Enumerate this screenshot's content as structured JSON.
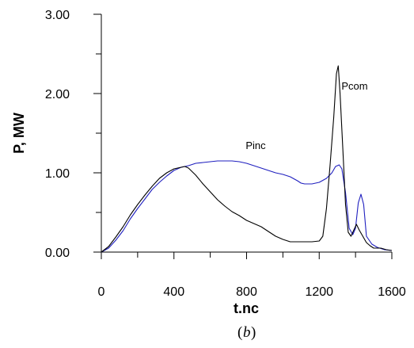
{
  "caption": {
    "open": "(",
    "letter": "b",
    "close": ")"
  },
  "chart_data": {
    "type": "line",
    "title": "",
    "xlabel": "t.nc",
    "ylabel": "P, MW",
    "xlim": [
      0,
      1600
    ],
    "ylim": [
      0,
      3
    ],
    "x_ticks": [
      {
        "value": 0,
        "label": "0"
      },
      {
        "value": 400,
        "label": "400"
      },
      {
        "value": 800,
        "label": "800"
      },
      {
        "value": 1200,
        "label": "1200"
      },
      {
        "value": 1600,
        "label": "1600"
      }
    ],
    "x_minor_step": 200,
    "y_ticks": [
      {
        "value": 0,
        "label": "0.00"
      },
      {
        "value": 1,
        "label": "1.00"
      },
      {
        "value": 2,
        "label": "2.00"
      },
      {
        "value": 3,
        "label": "3.00"
      }
    ],
    "y_minor_step": 0.5,
    "grid": false,
    "series": [
      {
        "name": "Pinc",
        "color": "#1f1fbf",
        "label_at": {
          "x": 850,
          "y": 1.3
        },
        "points": [
          [
            0,
            0
          ],
          [
            40,
            0.05
          ],
          [
            80,
            0.15
          ],
          [
            120,
            0.27
          ],
          [
            160,
            0.42
          ],
          [
            200,
            0.55
          ],
          [
            240,
            0.67
          ],
          [
            280,
            0.79
          ],
          [
            320,
            0.88
          ],
          [
            360,
            0.96
          ],
          [
            400,
            1.03
          ],
          [
            440,
            1.07
          ],
          [
            480,
            1.09
          ],
          [
            520,
            1.12
          ],
          [
            560,
            1.13
          ],
          [
            600,
            1.14
          ],
          [
            640,
            1.15
          ],
          [
            680,
            1.15
          ],
          [
            720,
            1.15
          ],
          [
            760,
            1.14
          ],
          [
            800,
            1.12
          ],
          [
            840,
            1.09
          ],
          [
            880,
            1.06
          ],
          [
            920,
            1.03
          ],
          [
            960,
            1.0
          ],
          [
            1000,
            0.98
          ],
          [
            1040,
            0.95
          ],
          [
            1080,
            0.9
          ],
          [
            1100,
            0.87
          ],
          [
            1120,
            0.86
          ],
          [
            1160,
            0.86
          ],
          [
            1200,
            0.88
          ],
          [
            1240,
            0.93
          ],
          [
            1270,
            1.0
          ],
          [
            1290,
            1.08
          ],
          [
            1310,
            1.1
          ],
          [
            1325,
            1.05
          ],
          [
            1345,
            0.75
          ],
          [
            1365,
            0.3
          ],
          [
            1385,
            0.22
          ],
          [
            1400,
            0.3
          ],
          [
            1415,
            0.62
          ],
          [
            1430,
            0.73
          ],
          [
            1445,
            0.6
          ],
          [
            1460,
            0.2
          ],
          [
            1490,
            0.1
          ],
          [
            1520,
            0.06
          ],
          [
            1560,
            0.03
          ],
          [
            1600,
            0.02
          ]
        ]
      },
      {
        "name": "Pcom",
        "color": "#000000",
        "label_at": {
          "x": 1395,
          "y": 2.05
        },
        "points": [
          [
            0,
            0
          ],
          [
            40,
            0.07
          ],
          [
            80,
            0.19
          ],
          [
            120,
            0.32
          ],
          [
            160,
            0.47
          ],
          [
            200,
            0.6
          ],
          [
            240,
            0.72
          ],
          [
            280,
            0.83
          ],
          [
            320,
            0.93
          ],
          [
            360,
            1.0
          ],
          [
            400,
            1.05
          ],
          [
            440,
            1.07
          ],
          [
            460,
            1.08
          ],
          [
            480,
            1.06
          ],
          [
            520,
            0.97
          ],
          [
            560,
            0.86
          ],
          [
            600,
            0.76
          ],
          [
            640,
            0.66
          ],
          [
            680,
            0.58
          ],
          [
            720,
            0.51
          ],
          [
            760,
            0.46
          ],
          [
            800,
            0.4
          ],
          [
            840,
            0.36
          ],
          [
            880,
            0.32
          ],
          [
            920,
            0.26
          ],
          [
            960,
            0.2
          ],
          [
            1000,
            0.16
          ],
          [
            1040,
            0.13
          ],
          [
            1080,
            0.13
          ],
          [
            1120,
            0.13
          ],
          [
            1160,
            0.13
          ],
          [
            1200,
            0.14
          ],
          [
            1220,
            0.2
          ],
          [
            1240,
            0.55
          ],
          [
            1260,
            1.1
          ],
          [
            1280,
            1.7
          ],
          [
            1295,
            2.25
          ],
          [
            1305,
            2.35
          ],
          [
            1315,
            2.0
          ],
          [
            1330,
            1.3
          ],
          [
            1345,
            0.6
          ],
          [
            1360,
            0.25
          ],
          [
            1375,
            0.2
          ],
          [
            1395,
            0.3
          ],
          [
            1405,
            0.35
          ],
          [
            1420,
            0.28
          ],
          [
            1440,
            0.2
          ],
          [
            1460,
            0.12
          ],
          [
            1480,
            0.08
          ],
          [
            1500,
            0.05
          ],
          [
            1540,
            0.05
          ],
          [
            1570,
            0.03
          ],
          [
            1600,
            0.02
          ]
        ]
      }
    ]
  }
}
